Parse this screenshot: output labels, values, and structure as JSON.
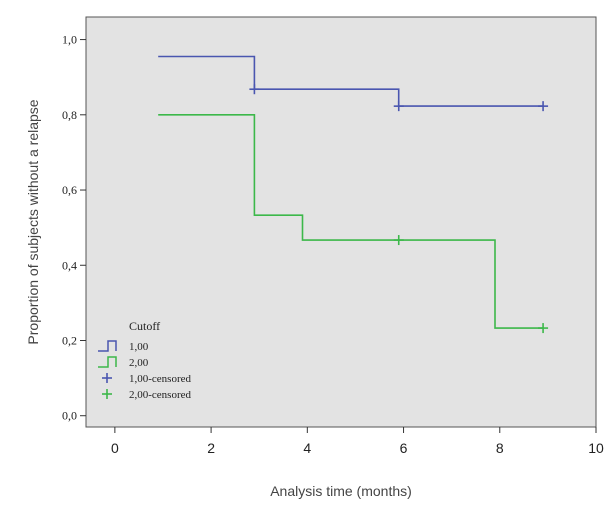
{
  "chart_data": {
    "type": "line",
    "subtype": "kaplan-meier-step",
    "xlabel": "Analysis time (months)",
    "ylabel": "Proportion of subjects without a relapse",
    "xlim": [
      -0.6,
      10
    ],
    "ylim": [
      -0.03,
      1.06
    ],
    "x_ticks": [
      0,
      2,
      4,
      6,
      8,
      10
    ],
    "x_tick_labels": [
      "0",
      "2",
      "4",
      "6",
      "8",
      "10"
    ],
    "y_ticks": [
      0.0,
      0.2,
      0.4,
      0.6,
      0.8,
      1.0
    ],
    "y_tick_labels": [
      "0,0",
      "0,2",
      "0,4",
      "0,6",
      "0,8",
      "1,0"
    ],
    "grid": false,
    "legend": {
      "title": "Cutoff",
      "placement": "bottom-left",
      "entries": [
        {
          "label": "1,00",
          "kind": "step",
          "color": "#4a56b0"
        },
        {
          "label": "2,00",
          "kind": "step",
          "color": "#3cb84a"
        },
        {
          "label": "1,00-censored",
          "kind": "censor",
          "color": "#4a56b0"
        },
        {
          "label": "2,00-censored",
          "kind": "censor",
          "color": "#3cb84a"
        }
      ]
    },
    "series": [
      {
        "name": "1,00",
        "color": "#4a56b0",
        "steps": [
          [
            0.9,
            0.955
          ],
          [
            2.9,
            0.955
          ],
          [
            2.9,
            0.868
          ],
          [
            5.9,
            0.868
          ],
          [
            5.9,
            0.823
          ],
          [
            8.9,
            0.823
          ]
        ],
        "censored": [
          [
            2.9,
            0.868
          ],
          [
            5.9,
            0.823
          ],
          [
            8.9,
            0.823
          ]
        ]
      },
      {
        "name": "2,00",
        "color": "#3cb84a",
        "steps": [
          [
            0.9,
            0.8
          ],
          [
            2.9,
            0.8
          ],
          [
            2.9,
            0.533
          ],
          [
            3.9,
            0.533
          ],
          [
            3.9,
            0.467
          ],
          [
            7.9,
            0.467
          ],
          [
            7.9,
            0.233
          ],
          [
            8.9,
            0.233
          ]
        ],
        "censored": [
          [
            5.9,
            0.467
          ],
          [
            8.9,
            0.233
          ]
        ]
      }
    ]
  }
}
